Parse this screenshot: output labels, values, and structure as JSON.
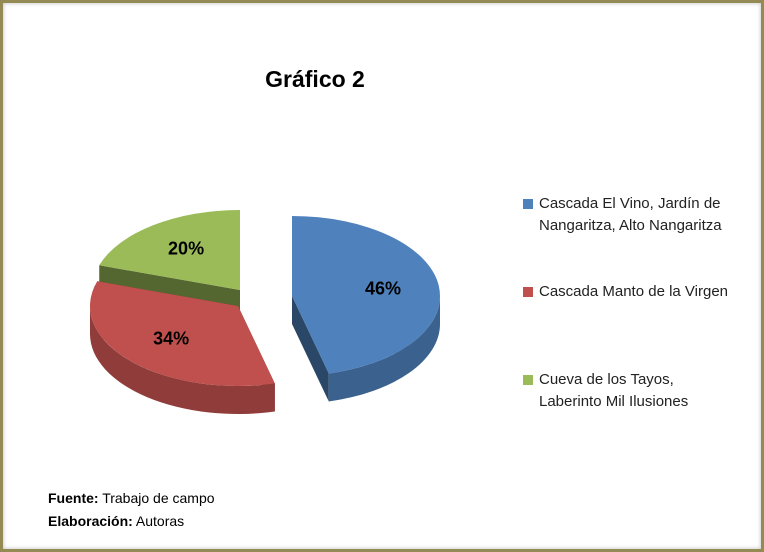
{
  "chart_data": {
    "type": "pie",
    "title": "Gráfico 2",
    "categories": [
      "Cascada El Vino, Jardín de Nangaritza, Alto Nangaritza",
      "Cascada Manto de la Virgen",
      "Cueva de los Tayos, Laberinto Mil Ilusiones"
    ],
    "values": [
      46,
      34,
      20
    ],
    "value_labels": [
      "46%",
      "34%",
      "20%"
    ],
    "colors": [
      "#4f81bd",
      "#c0504d",
      "#9bbb59"
    ],
    "legend": "right",
    "notes": [
      {
        "label": "Fuente:",
        "text": "Trabajo de campo"
      },
      {
        "label": "Elaboración:",
        "text": "Autoras"
      }
    ]
  }
}
